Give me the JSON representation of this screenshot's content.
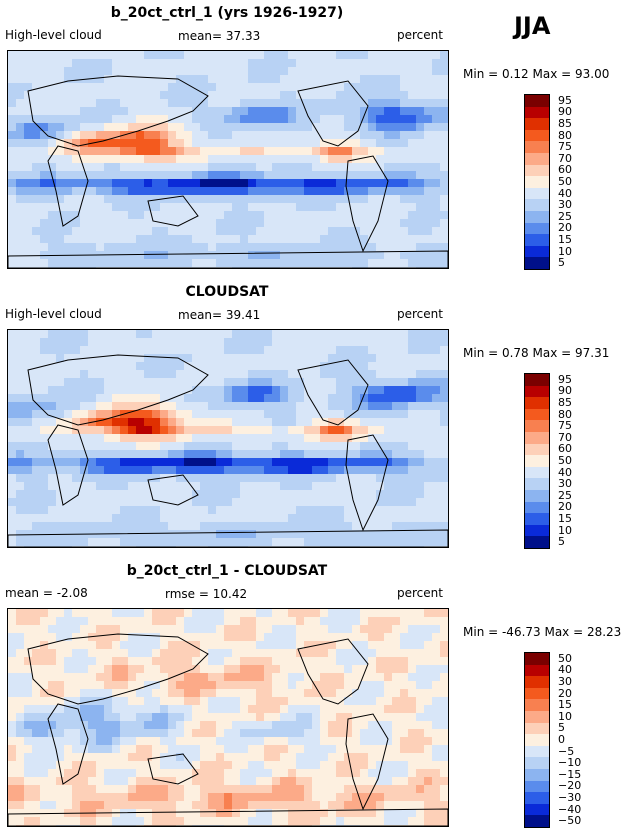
{
  "season": "JJA",
  "panels": [
    {
      "title": "b_20ct_ctrl_1 (yrs 1926-1927)",
      "left_label": "High-level cloud",
      "center_label": "mean=  37.33",
      "right_label": "percent",
      "minmax": "Min =   0.12 Max =  93.00",
      "colorbar_labels": [
        "95",
        "90",
        "85",
        "80",
        "75",
        "70",
        "60",
        "50",
        "40",
        "30",
        "25",
        "20",
        "15",
        "10",
        "5"
      ]
    },
    {
      "title": "CLOUDSAT",
      "left_label": "High-level cloud",
      "center_label": "mean=  39.41",
      "right_label": "percent",
      "minmax": "Min =   0.78 Max =  97.31",
      "colorbar_labels": [
        "95",
        "90",
        "85",
        "80",
        "75",
        "70",
        "60",
        "50",
        "40",
        "30",
        "25",
        "20",
        "15",
        "10",
        "5"
      ]
    },
    {
      "title": "b_20ct_ctrl_1 - CLOUDSAT",
      "left_label": "mean =  -2.08",
      "center_label": "rmse =  10.42",
      "right_label": "percent",
      "minmax": "Min = -46.73 Max =  28.23",
      "colorbar_labels": [
        "50",
        "40",
        "30",
        "20",
        "15",
        "10",
        "5",
        "0",
        "−5",
        "−10",
        "−15",
        "−20",
        "−30",
        "−40",
        "−50"
      ]
    }
  ],
  "colors": {
    "scale": [
      "#7a0000",
      "#b80000",
      "#e03000",
      "#f45a1e",
      "#f88050",
      "#fcaa88",
      "#fdd0b8",
      "#fdf0e0",
      "#d8e6f8",
      "#b8d2f4",
      "#8cb4f0",
      "#5a8cec",
      "#2c5ee8",
      "#0a2ad8",
      "#00108a"
    ]
  },
  "chart_data": [
    {
      "type": "heatmap",
      "title": "b_20ct_ctrl_1 (yrs 1926-1927)",
      "variable": "High-level cloud",
      "units": "percent",
      "mean": 37.33,
      "min": 0.12,
      "max": 93.0,
      "levels": [
        5,
        10,
        15,
        20,
        25,
        30,
        40,
        50,
        60,
        70,
        75,
        80,
        85,
        90,
        95
      ]
    },
    {
      "type": "heatmap",
      "title": "CLOUDSAT",
      "variable": "High-level cloud",
      "units": "percent",
      "mean": 39.41,
      "min": 0.78,
      "max": 97.31,
      "levels": [
        5,
        10,
        15,
        20,
        25,
        30,
        40,
        50,
        60,
        70,
        75,
        80,
        85,
        90,
        95
      ]
    },
    {
      "type": "heatmap",
      "title": "b_20ct_ctrl_1 - CLOUDSAT",
      "units": "percent",
      "mean": -2.08,
      "rmse": 10.42,
      "min": -46.73,
      "max": 28.23,
      "levels": [
        -50,
        -40,
        -30,
        -20,
        -15,
        -10,
        -5,
        0,
        5,
        10,
        15,
        20,
        30,
        40,
        50
      ]
    }
  ]
}
